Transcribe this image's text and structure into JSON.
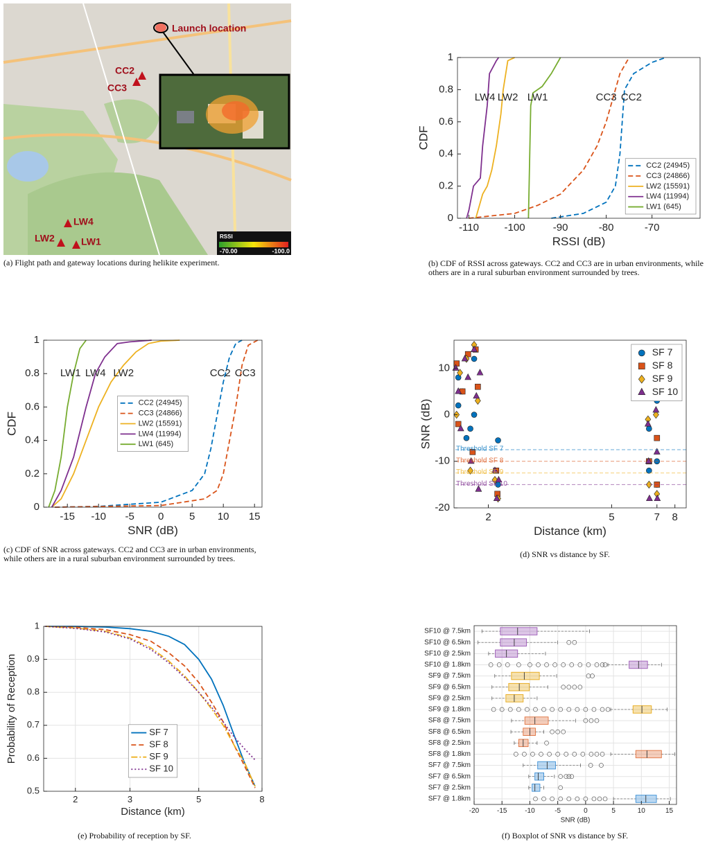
{
  "map": {
    "launch_label": "Launch location",
    "gateways": [
      "CC2",
      "CC3",
      "LW4",
      "LW2",
      "LW1"
    ],
    "colorbar": {
      "title": "RSSI",
      "min_label": "-70.00",
      "max_label": "-100.0"
    },
    "caption": "(a) Flight path and gateway locations during helikite experiment."
  },
  "chart_data": [
    {
      "type": "line",
      "caption": "(b) CDF of RSSI across gateways. CC2 and CC3 are in urban environments, while others are in a rural suburban environment surrounded by trees.",
      "x_label": "RSSI (dB)",
      "y_label": "CDF",
      "xlim": [
        -112.5,
        -59.5
      ],
      "xticks": [
        -110,
        -100,
        -90,
        -80,
        -70
      ],
      "ylim": [
        0,
        1
      ],
      "yticks": [
        0,
        0.2,
        0.4,
        0.6,
        0.8,
        1
      ],
      "grid": false,
      "legend_loc": "lower right",
      "series": [
        {
          "name": "CC2 (24945)",
          "color": "#0072bd",
          "style": "dashed",
          "x": [
            -92,
            -85,
            -80,
            -78,
            -77,
            -76.5,
            -76,
            -74,
            -70,
            -67
          ],
          "values": [
            0,
            0.03,
            0.1,
            0.2,
            0.4,
            0.6,
            0.8,
            0.9,
            0.97,
            1
          ]
        },
        {
          "name": "CC3 (24866)",
          "color": "#d95319",
          "style": "dashed",
          "x": [
            -110,
            -100,
            -95,
            -90,
            -85,
            -82,
            -80,
            -78,
            -77,
            -75
          ],
          "values": [
            0,
            0.03,
            0.08,
            0.15,
            0.3,
            0.45,
            0.6,
            0.8,
            0.9,
            1
          ]
        },
        {
          "name": "LW2 (15591)",
          "color": "#edb120",
          "style": "solid",
          "x": [
            -108.5,
            -107,
            -106,
            -105,
            -104,
            -103,
            -102.5,
            -101.5,
            -100
          ],
          "values": [
            0,
            0.15,
            0.2,
            0.3,
            0.45,
            0.65,
            0.8,
            0.98,
            1
          ]
        },
        {
          "name": "LW4 (11994)",
          "color": "#7e2f8e",
          "style": "solid",
          "x": [
            -110.5,
            -110,
            -109,
            -107.5,
            -107,
            -106,
            -105.5,
            -104,
            -103.5
          ],
          "values": [
            0,
            0.05,
            0.2,
            0.25,
            0.45,
            0.7,
            0.9,
            0.98,
            1
          ]
        },
        {
          "name": "LW1 (645)",
          "color": "#77ac30",
          "style": "solid",
          "x": [
            -97,
            -96.5,
            -96,
            -94,
            -92,
            -90
          ],
          "values": [
            0,
            0.7,
            0.78,
            0.82,
            0.9,
            1
          ]
        }
      ],
      "annotations": [
        {
          "text": "LW4",
          "x": -106.5,
          "y": 0.75
        },
        {
          "text": "LW2",
          "x": -101.5,
          "y": 0.75
        },
        {
          "text": "LW1",
          "x": -95,
          "y": 0.75
        },
        {
          "text": "CC3",
          "x": -80,
          "y": 0.75
        },
        {
          "text": "CC2",
          "x": -74.5,
          "y": 0.75
        }
      ]
    },
    {
      "type": "line",
      "caption": "(c) CDF of SNR across gateways. CC2 and CC3 are in urban environments, while others are in a rural suburban environment surrounded by trees.",
      "x_label": "SNR (dB)",
      "y_label": "CDF",
      "xlim": [
        -18.8,
        16.2
      ],
      "xticks": [
        -15,
        -10,
        -5,
        0,
        5,
        10,
        15
      ],
      "ylim": [
        0,
        1
      ],
      "yticks": [
        0,
        0.2,
        0.4,
        0.6,
        0.8,
        1
      ],
      "grid": false,
      "legend_loc": "center",
      "series": [
        {
          "name": "CC2 (24945)",
          "color": "#0072bd",
          "style": "dashed",
          "x": [
            -17,
            -10,
            0,
            5,
            7,
            8,
            9,
            10,
            11,
            12,
            13
          ],
          "values": [
            0,
            0.005,
            0.03,
            0.1,
            0.2,
            0.35,
            0.55,
            0.75,
            0.9,
            0.98,
            1
          ]
        },
        {
          "name": "CC3 (24866)",
          "color": "#d95319",
          "style": "dashed",
          "x": [
            -17,
            0,
            7,
            9,
            10,
            11,
            12,
            13,
            14,
            15.5
          ],
          "values": [
            0,
            0.01,
            0.05,
            0.1,
            0.2,
            0.4,
            0.6,
            0.85,
            0.97,
            1
          ]
        },
        {
          "name": "LW2 (15591)",
          "color": "#edb120",
          "style": "solid",
          "x": [
            -17.5,
            -16,
            -14,
            -12,
            -10,
            -8,
            -6,
            -4,
            -2,
            0,
            3
          ],
          "values": [
            0,
            0.05,
            0.2,
            0.4,
            0.6,
            0.75,
            0.85,
            0.93,
            0.98,
            0.995,
            1
          ]
        },
        {
          "name": "LW4 (11994)",
          "color": "#7e2f8e",
          "style": "solid",
          "x": [
            -17.5,
            -16,
            -14,
            -12,
            -10.5,
            -9,
            -7,
            -5,
            -1.5
          ],
          "values": [
            0,
            0.1,
            0.3,
            0.6,
            0.8,
            0.9,
            0.98,
            0.99,
            1
          ]
        },
        {
          "name": "LW1 (645)",
          "color": "#77ac30",
          "style": "solid",
          "x": [
            -18,
            -17,
            -16,
            -15,
            -14,
            -13,
            -12
          ],
          "values": [
            0,
            0.1,
            0.3,
            0.6,
            0.8,
            0.95,
            1
          ]
        }
      ],
      "annotations": [
        {
          "text": "LW1",
          "x": -14.5,
          "y": 0.8
        },
        {
          "text": "LW4",
          "x": -10.5,
          "y": 0.8
        },
        {
          "text": "LW2",
          "x": -6,
          "y": 0.8
        },
        {
          "text": "CC2",
          "x": 9.5,
          "y": 0.8
        },
        {
          "text": "CC3",
          "x": 13.5,
          "y": 0.8
        }
      ]
    },
    {
      "type": "scatter",
      "caption": "(d) SNR vs distance by SF.",
      "x_label": "Distance (km)",
      "y_label": "SNR (dB)",
      "xscale": "log",
      "xlim": [
        1.55,
        8.7
      ],
      "xticks": [
        2,
        5,
        7,
        8
      ],
      "ylim": [
        -20,
        16
      ],
      "yticks": [
        -20,
        -10,
        0,
        10
      ],
      "grid": false,
      "legend_loc": "upper right",
      "series": [
        {
          "name": "SF 7",
          "color": "#0072bd",
          "marker": "circle",
          "x": [
            1.6,
            1.6,
            1.65,
            1.7,
            1.75,
            1.8,
            1.8,
            2.15,
            2.15,
            6.6,
            6.6,
            7,
            7,
            7
          ],
          "values": [
            8,
            2,
            5,
            -5,
            -3,
            0,
            12,
            -5.5,
            -15,
            -12,
            -3,
            3,
            -10,
            -15
          ]
        },
        {
          "name": "SF 8",
          "color": "#d95319",
          "marker": "square",
          "x": [
            1.58,
            1.6,
            1.65,
            1.72,
            1.78,
            1.82,
            1.85,
            2.12,
            2.14,
            6.6,
            7,
            7
          ],
          "values": [
            11,
            -2,
            5,
            13,
            -8,
            14,
            6,
            -12,
            -17,
            -10,
            -5,
            -15
          ]
        },
        {
          "name": "SF 9",
          "color": "#edb120",
          "marker": "diamond",
          "x": [
            1.58,
            1.62,
            1.7,
            1.75,
            1.8,
            1.85,
            2.1,
            2.15,
            6.55,
            6.6,
            6.95,
            7
          ],
          "values": [
            0,
            9,
            12,
            -12,
            15,
            3,
            -14,
            -18,
            -1,
            -15,
            0,
            -17
          ]
        },
        {
          "name": "SF 10",
          "color": "#7e2f8e",
          "marker": "triangle",
          "x": [
            1.57,
            1.6,
            1.63,
            1.68,
            1.72,
            1.76,
            1.8,
            1.83,
            1.86,
            1.88,
            2.1,
            2.13,
            2.16,
            6.55,
            6.58,
            6.62,
            6.95,
            7,
            7.02
          ],
          "values": [
            10,
            5,
            -3,
            12,
            8,
            -10,
            14,
            4,
            -16,
            9,
            -12,
            -18,
            -14,
            -2,
            -10,
            -18,
            1,
            -8,
            -18
          ]
        }
      ],
      "thresholds": [
        {
          "label": "Threshold SF 7",
          "value": -7.5,
          "color": "#0072bd"
        },
        {
          "label": "Threshold SF 8",
          "value": -10,
          "color": "#d95319"
        },
        {
          "label": "Threshold SF 9",
          "value": -12.5,
          "color": "#edb120"
        },
        {
          "label": "Threshold SF 10",
          "value": -15,
          "color": "#7e2f8e"
        }
      ]
    },
    {
      "type": "line",
      "caption": "(e) Probability of reception by SF.",
      "x_label": "Distance (km)",
      "y_label": "Probability of Reception",
      "xscale": "log",
      "xlim": [
        1.58,
        8
      ],
      "xticks": [
        2,
        3,
        5,
        8
      ],
      "ylim": [
        0.5,
        1
      ],
      "yticks": [
        0.5,
        0.6,
        0.7,
        0.8,
        0.9,
        1
      ],
      "grid": true,
      "legend_loc": "lower center",
      "series": [
        {
          "name": "SF 7",
          "color": "#0072bd",
          "style": "solid",
          "x": [
            1.6,
            2,
            2.5,
            3,
            3.5,
            4,
            4.5,
            5,
            5.5,
            6,
            6.5,
            7,
            7.6
          ],
          "values": [
            1,
            1,
            0.998,
            0.993,
            0.985,
            0.97,
            0.945,
            0.9,
            0.84,
            0.76,
            0.67,
            0.59,
            0.515
          ]
        },
        {
          "name": "SF 8",
          "color": "#d95319",
          "style": "dashed",
          "x": [
            1.6,
            2,
            2.5,
            3,
            3.5,
            4,
            4.5,
            5,
            5.5,
            6,
            6.5,
            7,
            7.6
          ],
          "values": [
            1,
            0.997,
            0.99,
            0.975,
            0.955,
            0.92,
            0.88,
            0.83,
            0.77,
            0.71,
            0.64,
            0.58,
            0.51
          ]
        },
        {
          "name": "SF 9",
          "color": "#edb120",
          "style": "dashdot",
          "x": [
            1.6,
            2,
            2.5,
            3,
            3.5,
            4,
            4.5,
            5,
            5.5,
            6,
            6.5,
            7,
            7.6
          ],
          "values": [
            1,
            0.995,
            0.985,
            0.965,
            0.935,
            0.895,
            0.85,
            0.8,
            0.75,
            0.7,
            0.64,
            0.59,
            0.515
          ]
        },
        {
          "name": "SF 10",
          "color": "#7e2f8e",
          "style": "dotted",
          "x": [
            1.6,
            2,
            2.5,
            3,
            3.5,
            4,
            4.5,
            5,
            5.5,
            6,
            6.5,
            7,
            7.6
          ],
          "values": [
            1,
            0.994,
            0.983,
            0.962,
            0.93,
            0.89,
            0.845,
            0.8,
            0.755,
            0.71,
            0.665,
            0.63,
            0.595
          ]
        }
      ]
    },
    {
      "type": "box",
      "caption": "(f) Boxplot of SNR vs distance by SF.",
      "x_label": "SNR (dB)",
      "xlim": [
        -20,
        16.3
      ],
      "xticks": [
        -20,
        -15,
        -10,
        -5,
        0,
        5,
        10,
        15
      ],
      "grid": true,
      "categories": [
        "SF10 @ 7.5km",
        "SF10 @ 6.5km",
        "SF10 @ 2.5km",
        "SF10 @ 1.8km",
        "SF9 @ 7.5km",
        "SF9 @ 6.5km",
        "SF9 @ 2.5km",
        "SF9 @ 1.8km",
        "SF8 @ 7.5km",
        "SF8 @ 6.5km",
        "SF8 @ 2.5km",
        "SF8 @ 1.8km",
        "SF7 @ 7.5km",
        "SF7 @ 6.5km",
        "SF7 @ 2.5km",
        "SF7 @ 1.8km"
      ],
      "boxes": [
        {
          "color": "#9b59b6",
          "min": -18.6,
          "q1": -15.3,
          "median": -12.2,
          "q3": -8.7,
          "max": 0.7,
          "outliers": []
        },
        {
          "color": "#9b59b6",
          "min": -19.3,
          "q1": -15.3,
          "median": -12.8,
          "q3": -10.6,
          "max": -5,
          "outliers": [
            -3,
            -2
          ]
        },
        {
          "color": "#9b59b6",
          "min": -17.4,
          "q1": -16.2,
          "median": -14.2,
          "q3": -12.2,
          "max": -7.2,
          "outliers": []
        },
        {
          "color": "#9b59b6",
          "min": 4,
          "q1": 7.8,
          "median": 9.5,
          "q3": 11.1,
          "max": 13.6,
          "outliers": [
            -17,
            -15.5,
            -14,
            -12,
            -10,
            -8.5,
            -7,
            -5.5,
            -4,
            -2.5,
            -1,
            0.5,
            2,
            3,
            3.5
          ]
        },
        {
          "color": "#e6a817",
          "min": -16.3,
          "q1": -13.3,
          "median": -11,
          "q3": -8.3,
          "max": -5.2,
          "outliers": [
            0.5,
            1.2
          ]
        },
        {
          "color": "#e6a817",
          "min": -16.8,
          "q1": -13.8,
          "median": -11.9,
          "q3": -10.1,
          "max": -6.8,
          "outliers": [
            -4,
            -3,
            -2,
            -1
          ]
        },
        {
          "color": "#e6a817",
          "min": -16.8,
          "q1": -14.3,
          "median": -12.8,
          "q3": -11.2,
          "max": -8.7,
          "outliers": []
        },
        {
          "color": "#e6a817",
          "min": 4.5,
          "q1": 8.5,
          "median": 10.1,
          "q3": 11.8,
          "max": 14.6,
          "outliers": [
            -16.5,
            -15,
            -13.5,
            -12,
            -10.5,
            -9,
            -7.5,
            -6,
            -4.5,
            -3,
            -1.5,
            0,
            1.5,
            3,
            4
          ]
        },
        {
          "color": "#e0703c",
          "min": -13.3,
          "q1": -10.9,
          "median": -9.1,
          "q3": -6.7,
          "max": -1.8,
          "outliers": [
            0,
            1,
            2
          ]
        },
        {
          "color": "#e0703c",
          "min": -13.4,
          "q1": -11.2,
          "median": -10,
          "q3": -9,
          "max": -7.5,
          "outliers": [
            -6,
            -5,
            -4
          ]
        },
        {
          "color": "#e0703c",
          "min": -12.8,
          "q1": -12,
          "median": -11.2,
          "q3": -10.3,
          "max": -8.7,
          "outliers": [
            -7
          ]
        },
        {
          "color": "#e0703c",
          "min": 4.5,
          "q1": 9,
          "median": 11,
          "q3": 13.6,
          "max": 16,
          "outliers": [
            -12.5,
            -11,
            -9.5,
            -8,
            -6.5,
            -5,
            -3.5,
            -2,
            -0.5,
            1,
            2,
            3
          ]
        },
        {
          "color": "#3c8fd6",
          "min": -11.2,
          "q1": -8.6,
          "median": -6.9,
          "q3": -5.4,
          "max": -0.9,
          "outliers": [
            0.9,
            2.8
          ]
        },
        {
          "color": "#3c8fd6",
          "min": -10.2,
          "q1": -9.1,
          "median": -8.5,
          "q3": -7.5,
          "max": -5.6,
          "outliers": [
            -4.5,
            -3.5,
            -3,
            -2.5
          ]
        },
        {
          "color": "#3c8fd6",
          "min": -10.2,
          "q1": -9.6,
          "median": -9.1,
          "q3": -8.2,
          "max": -7.5,
          "outliers": [
            -4.5
          ]
        },
        {
          "color": "#3c8fd6",
          "min": 5,
          "q1": 9,
          "median": 10.8,
          "q3": 12.7,
          "max": 15.2,
          "outliers": [
            -9,
            -7.5,
            -6,
            -4.5,
            -3,
            -1.5,
            0,
            1.5,
            2.5,
            3.5
          ]
        }
      ]
    }
  ]
}
